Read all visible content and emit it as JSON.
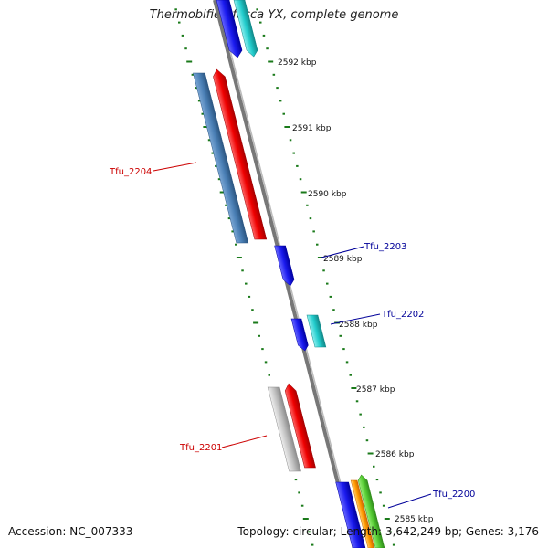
{
  "title": "Thermobifida fusca YX, complete genome",
  "footer": {
    "accession": "Accession: NC_007333",
    "summary": "Topology: circular; Length: 3,642,249 bp; Genes: 3,176"
  },
  "chart_data": {
    "type": "genome-map",
    "scale_labels": [
      "2592 kbp",
      "2591 kbp",
      "2590 kbp",
      "2589 kbp",
      "2588 kbp",
      "2587 kbp",
      "2586 kbp",
      "2585 kbp"
    ],
    "gene_labels": [
      {
        "name": "Tfu_2204",
        "color": "#cc0000"
      },
      {
        "name": "Tfu_2203",
        "color": "#000099"
      },
      {
        "name": "Tfu_2202",
        "color": "#000099"
      },
      {
        "name": "Tfu_2201",
        "color": "#cc0000"
      },
      {
        "name": "Tfu_2200",
        "color": "#000099"
      }
    ],
    "colors": {
      "steelblue": "#4a7fb5",
      "red": "#ee0000",
      "blue": "#1a1aee",
      "cyan": "#22cccc",
      "gray": "#c0c0c0",
      "orange": "#ff9900",
      "green": "#55cc33",
      "tick": "#1a7a1a",
      "backbone": "#777777"
    }
  }
}
